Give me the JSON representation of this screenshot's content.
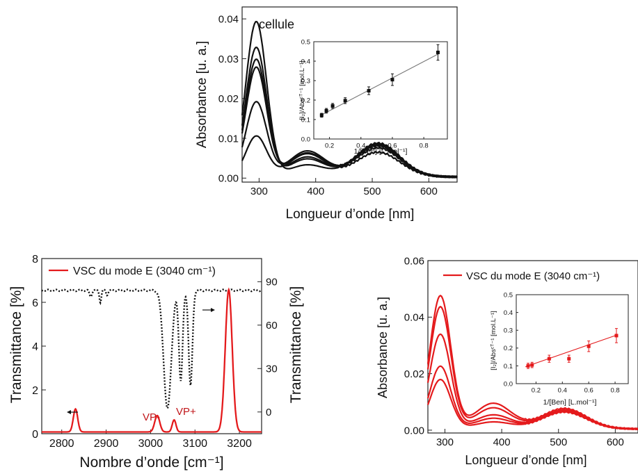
{
  "chart_data": [
    {
      "id": "top",
      "type": "line",
      "title": "",
      "annotation": "cellule",
      "xlabel": "Longueur d’onde [nm]",
      "ylabel": "Absorbance [u. a.]",
      "xlim": [
        270,
        650
      ],
      "ylim": [
        -0.001,
        0.043
      ],
      "xticks": [
        300,
        400,
        500,
        600
      ],
      "xtick_labels": [
        "300",
        "400",
        "500",
        "600"
      ],
      "yticks": [
        0,
        0.01,
        0.02,
        0.03,
        0.04
      ],
      "ytick_labels": [
        "0.00",
        "0.01",
        "0.02",
        "0.03",
        "0.04"
      ],
      "color": "#111111",
      "grid": false,
      "series": [
        {
          "peak_x": 295,
          "peak": 0.039,
          "shoulder": 0.003,
          "band": 0.0085,
          "tail": 0.0003
        },
        {
          "peak_x": 295,
          "peak": 0.0325,
          "shoulder": 0.0045,
          "band": 0.0082,
          "tail": 0.0003
        },
        {
          "peak_x": 295,
          "peak": 0.0295,
          "shoulder": 0.005,
          "band": 0.008,
          "tail": 0.0003
        },
        {
          "peak_x": 295,
          "peak": 0.0275,
          "shoulder": 0.006,
          "band": 0.0078,
          "tail": 0.0003
        },
        {
          "peak_x": 295,
          "peak": 0.0188,
          "shoulder": 0.0065,
          "band": 0.0073,
          "tail": 0.0003
        },
        {
          "peak_x": 295,
          "peak": 0.0102,
          "shoulder": 0.0058,
          "band": 0.0062,
          "tail": 0.0003
        }
      ]
    },
    {
      "id": "top-inset",
      "type": "scatter",
      "xlabel": "1/[Ben] [L.mol⁻¹]",
      "ylabel": "[I₂]/Absᶜᵀ⁻¹ [mol.L⁻¹]",
      "xlim": [
        0.1,
        0.95
      ],
      "ylim": [
        0,
        0.5
      ],
      "xticks": [
        0.2,
        0.4,
        0.6,
        0.8
      ],
      "xtick_labels": [
        "0.2",
        "0.4",
        "0.6",
        "0.8"
      ],
      "yticks": [
        0,
        0.1,
        0.2,
        0.3,
        0.4,
        0.5
      ],
      "ytick_labels": [
        "0.0",
        "0.1",
        "0.2",
        "0.3",
        "0.4",
        "0.5"
      ],
      "color": "#111111",
      "points": [
        {
          "x": 0.15,
          "y": 0.122,
          "err": 0.01
        },
        {
          "x": 0.18,
          "y": 0.145,
          "err": 0.012
        },
        {
          "x": 0.22,
          "y": 0.17,
          "err": 0.013
        },
        {
          "x": 0.3,
          "y": 0.197,
          "err": 0.015
        },
        {
          "x": 0.45,
          "y": 0.248,
          "err": 0.02
        },
        {
          "x": 0.6,
          "y": 0.305,
          "err": 0.03
        },
        {
          "x": 0.89,
          "y": 0.445,
          "err": 0.04
        }
      ],
      "fit": [
        [
          0.14,
          0.12
        ],
        [
          0.9,
          0.44
        ]
      ]
    },
    {
      "id": "bottom-left",
      "type": "line",
      "legend": "VSC du mode E (3040 cm⁻¹)",
      "legend_position": "top-left",
      "xlabel": "Nombre d’onde [cm⁻¹]",
      "ylabel": "Transmittance [%]",
      "ylabel_right": "Transmittance [%]",
      "xlim": [
        2755,
        3250
      ],
      "ylim": [
        0,
        8
      ],
      "ylim_right": [
        -15,
        106
      ],
      "xticks": [
        2800,
        2900,
        3000,
        3100,
        3200
      ],
      "xtick_labels": [
        "2800",
        "2900",
        "3000",
        "3100",
        "3200"
      ],
      "yticks": [
        0,
        2,
        4,
        6,
        8
      ],
      "ytick_labels": [
        "0",
        "2",
        "4",
        "6",
        "8"
      ],
      "yticks_right": [
        0,
        30,
        60,
        90
      ],
      "ytick_labels_right": [
        "0",
        "30",
        "60",
        "90"
      ],
      "annotations": [
        "VP-",
        "VP+"
      ],
      "red": "#e41a1c",
      "dotted": "#111111",
      "peaks_red": [
        {
          "x": 2831,
          "h": 1.05,
          "w": 7
        },
        {
          "x": 3015,
          "h": 0.75,
          "w": 8
        },
        {
          "x": 3053,
          "h": 0.55,
          "w": 6
        },
        {
          "x": 3176,
          "h": 6.5,
          "w": 11
        }
      ],
      "baseline_red": 0.08,
      "dips_dotted": [
        {
          "x": 2865,
          "d": 4,
          "w": 4
        },
        {
          "x": 2887,
          "d": 8,
          "w": 3
        },
        {
          "x": 2902,
          "d": 3,
          "w": 3
        },
        {
          "x": 3038,
          "d": 82,
          "w": 12
        },
        {
          "x": 3068,
          "d": 62,
          "w": 6
        },
        {
          "x": 3090,
          "d": 66,
          "w": 6
        }
      ],
      "baseline_dotted": 84
    },
    {
      "id": "bottom-right",
      "type": "line",
      "legend": "VSC du mode E (3040 cm⁻¹)",
      "legend_position": "top-right",
      "xlabel": "Longueur d’onde [nm]",
      "ylabel": "Absorbance [u. a.]",
      "xlim": [
        270,
        640
      ],
      "ylim": [
        -0.001,
        0.06
      ],
      "xticks": [
        300,
        400,
        500,
        600
      ],
      "xtick_labels": [
        "300",
        "400",
        "500",
        "600"
      ],
      "yticks": [
        0,
        0.02,
        0.04,
        0.06
      ],
      "ytick_labels": [
        "0.00",
        "0.02",
        "0.04",
        "0.06"
      ],
      "color": "#e41a1c",
      "series": [
        {
          "peak_x": 292,
          "peak": 0.047,
          "shoulder": 0.009,
          "band": 0.0072,
          "tail": 0.0005
        },
        {
          "peak_x": 292,
          "peak": 0.0432,
          "shoulder": 0.0075,
          "band": 0.0068,
          "tail": 0.0004
        },
        {
          "peak_x": 292,
          "peak": 0.0335,
          "shoulder": 0.005,
          "band": 0.0065,
          "tail": 0.0004
        },
        {
          "peak_x": 292,
          "peak": 0.0222,
          "shoulder": 0.0038,
          "band": 0.0062,
          "tail": 0.0004
        },
        {
          "peak_x": 292,
          "peak": 0.0175,
          "shoulder": 0.0025,
          "band": 0.006,
          "tail": 0.0004
        }
      ]
    },
    {
      "id": "bottom-right-inset",
      "type": "scatter",
      "xlabel": "1/[Ben] [L.mol⁻¹]",
      "ylabel": "[I₂]/Absᶜᵀ⁻¹ [mol.L⁻¹]",
      "xlim": [
        0.05,
        0.9
      ],
      "ylim": [
        0,
        0.5
      ],
      "xticks": [
        0.2,
        0.4,
        0.6,
        0.8
      ],
      "xtick_labels": [
        "0.2",
        "0.4",
        "0.6",
        "0.8"
      ],
      "yticks": [
        0,
        0.1,
        0.2,
        0.3,
        0.4,
        0.5
      ],
      "ytick_labels": [
        "0.0",
        "0.1",
        "0.2",
        "0.3",
        "0.4",
        "0.5"
      ],
      "color": "#e41a1c",
      "points": [
        {
          "x": 0.14,
          "y": 0.1,
          "err": 0.015
        },
        {
          "x": 0.17,
          "y": 0.105,
          "err": 0.015
        },
        {
          "x": 0.3,
          "y": 0.14,
          "err": 0.02
        },
        {
          "x": 0.45,
          "y": 0.14,
          "err": 0.02
        },
        {
          "x": 0.6,
          "y": 0.21,
          "err": 0.03
        },
        {
          "x": 0.81,
          "y": 0.27,
          "err": 0.04
        }
      ],
      "fit": [
        [
          0.12,
          0.095
        ],
        [
          0.82,
          0.275
        ]
      ]
    }
  ]
}
